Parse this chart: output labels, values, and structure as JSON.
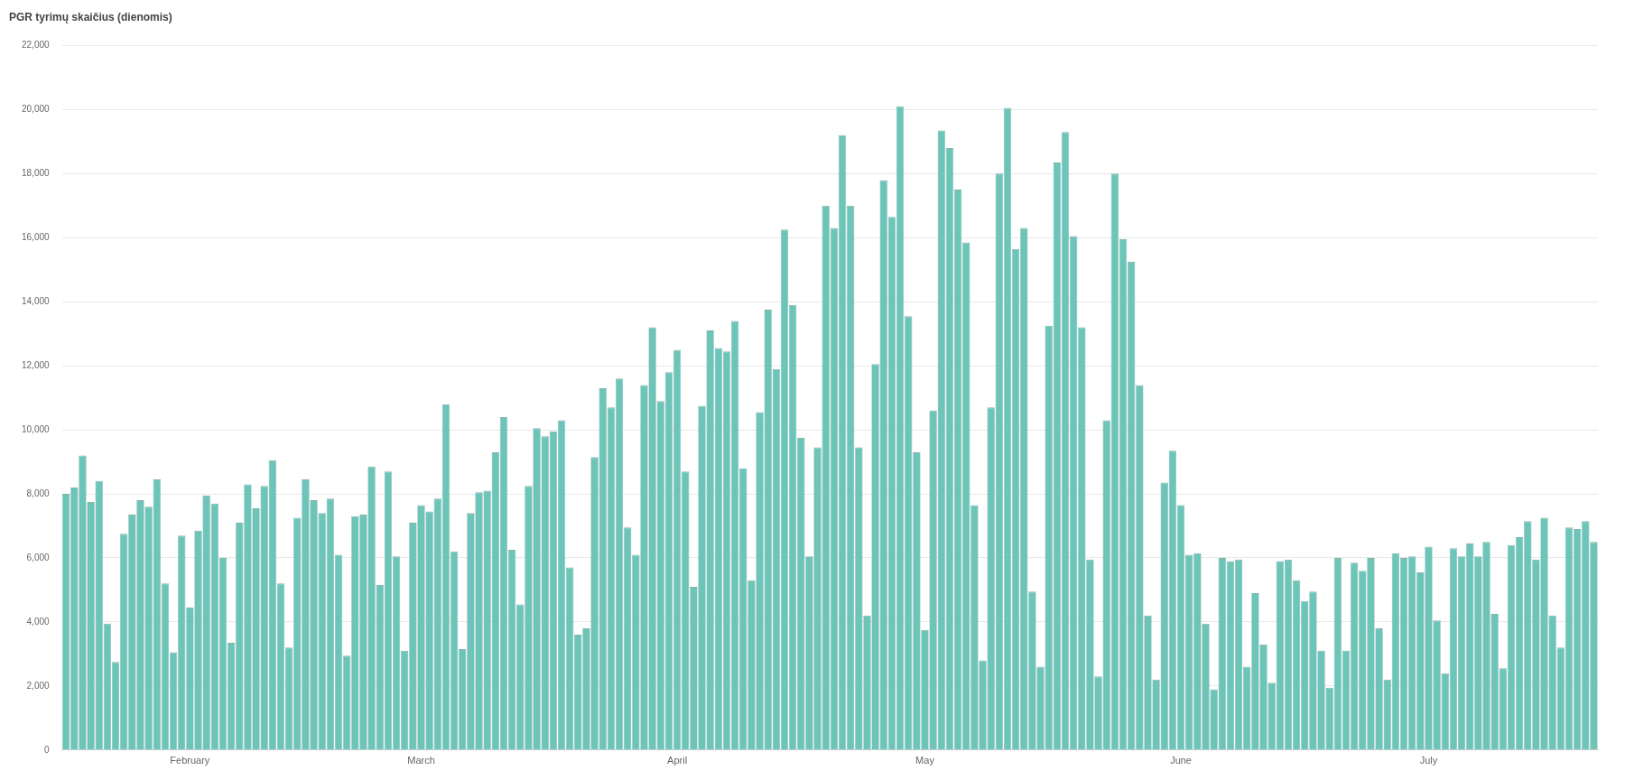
{
  "chart_data": {
    "type": "bar",
    "title": "PGR tyrimų skaičius (dienomis)",
    "categories": [
      null,
      null,
      null,
      null,
      null,
      null,
      null,
      null,
      null,
      null,
      null,
      null,
      null,
      null,
      null,
      "February",
      null,
      null,
      null,
      null,
      null,
      null,
      null,
      null,
      null,
      null,
      null,
      null,
      null,
      null,
      null,
      null,
      null,
      null,
      null,
      null,
      null,
      null,
      null,
      null,
      null,
      null,
      null,
      "March",
      null,
      null,
      null,
      null,
      null,
      null,
      null,
      null,
      null,
      null,
      null,
      null,
      null,
      null,
      null,
      null,
      null,
      null,
      null,
      null,
      null,
      null,
      null,
      null,
      null,
      null,
      null,
      null,
      null,
      null,
      "April",
      null,
      null,
      null,
      null,
      null,
      null,
      null,
      null,
      null,
      null,
      null,
      null,
      null,
      null,
      null,
      null,
      null,
      null,
      null,
      null,
      null,
      null,
      null,
      null,
      null,
      null,
      null,
      null,
      null,
      "May",
      null,
      null,
      null,
      null,
      null,
      null,
      null,
      null,
      null,
      null,
      null,
      null,
      null,
      null,
      null,
      null,
      null,
      null,
      null,
      null,
      null,
      null,
      null,
      null,
      null,
      null,
      null,
      null,
      null,
      null,
      "June",
      null,
      null,
      null,
      null,
      null,
      null,
      null,
      null,
      null,
      null,
      null,
      null,
      null,
      null,
      null,
      null,
      null,
      null,
      null,
      null,
      null,
      null,
      null,
      null,
      null,
      null,
      null,
      null,
      null,
      "July",
      null,
      null,
      null,
      null,
      null,
      null,
      null,
      null,
      null,
      null,
      null,
      null,
      null,
      null,
      null,
      null,
      null,
      null,
      null,
      null
    ],
    "values": [
      8000,
      8200,
      9200,
      7750,
      8400,
      3950,
      2750,
      6750,
      7350,
      7800,
      7600,
      8450,
      5200,
      3050,
      6700,
      4450,
      6850,
      7950,
      7700,
      6000,
      3350,
      7100,
      8300,
      7550,
      8250,
      9050,
      5200,
      3200,
      7250,
      8450,
      7800,
      7400,
      7850,
      6100,
      2950,
      7300,
      7350,
      8850,
      5150,
      8700,
      6050,
      3100,
      7100,
      7650,
      7450,
      7850,
      10800,
      6200,
      3150,
      7400,
      8050,
      8100,
      9300,
      10400,
      6250,
      4550,
      8250,
      10050,
      9800,
      9950,
      10300,
      5700,
      3600,
      3800,
      9150,
      11300,
      10700,
      11600,
      6950,
      6100,
      11400,
      13200,
      10900,
      11800,
      12500,
      8700,
      5100,
      10750,
      13100,
      12550,
      12450,
      13400,
      8800,
      5300,
      10550,
      13750,
      11900,
      16250,
      13900,
      9750,
      6050,
      9450,
      17000,
      16300,
      19200,
      17000,
      9450,
      4200,
      12050,
      17800,
      16650,
      20100,
      13550,
      9300,
      3750,
      10600,
      19350,
      18800,
      17500,
      15850,
      7650,
      2800,
      10700,
      18000,
      20050,
      15650,
      16300,
      4950,
      2600,
      13250,
      18350,
      19300,
      16050,
      13200,
      5950,
      2300,
      10300,
      18000,
      15950,
      15250,
      11400,
      4200,
      2200,
      8350,
      9350,
      7650,
      6100,
      6150,
      3950,
      1900,
      6000,
      5900,
      5950,
      2600,
      4900,
      3300,
      2100,
      5900,
      5950,
      5300,
      4650,
      4950,
      3100,
      1950,
      6000,
      3100,
      5850,
      5600,
      6000,
      3800,
      2200,
      6150,
      6000,
      6050,
      5550,
      6350,
      4050,
      2400,
      6300,
      6050,
      6450,
      6050,
      6500,
      4250,
      2550,
      6400,
      6650,
      7150,
      5950,
      7250,
      4200,
      3200,
      6950,
      6900,
      7150,
      6500
    ],
    "color": "#6cc5b8",
    "ylim": [
      0,
      22000
    ],
    "yticks": [
      0,
      {
        "value": 2000,
        "label": "2,000"
      },
      {
        "value": 4000,
        "label": "4,000"
      },
      {
        "value": 6000,
        "label": "6,000"
      },
      {
        "value": 8000,
        "label": "8,000"
      },
      {
        "value": 10000,
        "label": "10,000"
      },
      {
        "value": 12000,
        "label": "12,000"
      },
      {
        "value": 14000,
        "label": "14,000"
      },
      {
        "value": 16000,
        "label": "16,000"
      },
      {
        "value": 18000,
        "label": "18,000"
      },
      {
        "value": 20000,
        "label": "20,000"
      },
      {
        "value": 22000,
        "label": "22,000"
      }
    ],
    "grid": "y"
  }
}
